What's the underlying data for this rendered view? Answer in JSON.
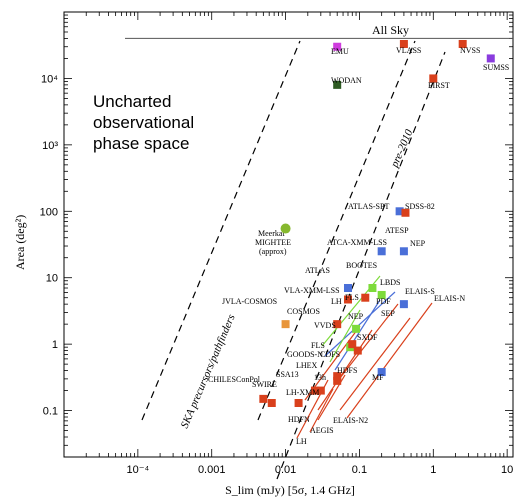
{
  "chart_data": {
    "type": "scatter",
    "title": "",
    "xlabel": "S_lim (mJy) [5σ, 1.4 GHz]",
    "ylabel": "Area (deg²)",
    "x_scale": "log",
    "y_scale": "log",
    "xlim": [
      1e-05,
      12
    ],
    "ylim": [
      0.02,
      100000
    ],
    "x_tick_labels": [
      "10⁻⁴",
      "0.001",
      "0.01",
      "0.1",
      "1",
      "10"
    ],
    "x_ticks": [
      0.0001,
      0.001,
      0.01,
      0.1,
      1,
      10
    ],
    "y_tick_labels": [
      "0.1",
      "1",
      "10",
      "100",
      "10³",
      "10⁴"
    ],
    "y_ticks": [
      0.1,
      1,
      10,
      100,
      1000,
      10000
    ],
    "annotations": {
      "uncharted": [
        "Uncharted",
        "observational",
        "phase space"
      ],
      "all_sky": "All Sky",
      "ska_band": "SKA precursors/pathfinders",
      "pre2010_band": "pre-2010",
      "meerkat": [
        "Meerkat",
        "MIGHTEE",
        "(approx)"
      ]
    },
    "all_sky_area": 40000,
    "colors": {
      "red": "#d9401c",
      "blue": "#4a6fd8",
      "green": "#7ddb3a",
      "orange": "#e8953a",
      "magenta": "#cf3cde",
      "purple": "#8a3cde",
      "darkgreen": "#2d5a22",
      "olive": "#86b82e"
    },
    "series": [
      {
        "label": "EMU",
        "x": 0.05,
        "y": 30000,
        "color": "magenta",
        "marker": "square"
      },
      {
        "label": "WODAN",
        "x": 0.05,
        "y": 8000,
        "color": "darkgreen",
        "marker": "square"
      },
      {
        "label": "VLASS",
        "x": 0.4,
        "y": 33000,
        "color": "red",
        "marker": "square"
      },
      {
        "label": "NVSS",
        "x": 2.5,
        "y": 33000,
        "color": "red",
        "marker": "square"
      },
      {
        "label": "SUMSS",
        "x": 6,
        "y": 20000,
        "color": "purple",
        "marker": "square"
      },
      {
        "label": "FIRST",
        "x": 1.0,
        "y": 10000,
        "color": "red",
        "marker": "square"
      },
      {
        "label": "ATLAS-SPT",
        "x": 0.35,
        "y": 100,
        "color": "blue",
        "marker": "square"
      },
      {
        "label": "SDSS-82",
        "x": 0.42,
        "y": 95,
        "color": "red",
        "marker": "square"
      },
      {
        "label": "",
        "x": 0.01,
        "y": 55,
        "color": "olive",
        "marker": "circle"
      },
      {
        "label": "ATCA-XMM-LSS",
        "x": 0.2,
        "y": 25,
        "color": "blue",
        "marker": "square"
      },
      {
        "label": "ATESP",
        "x": 0.4,
        "y": 25,
        "color": "blue",
        "marker": "square"
      },
      {
        "label": "ATLAS",
        "x": 0.07,
        "y": 7,
        "color": "blue",
        "marker": "square"
      },
      {
        "label": "BOOTES",
        "x": 0.15,
        "y": 7,
        "color": "green",
        "marker": "square"
      },
      {
        "label": "LBDS",
        "x": 0.2,
        "y": 5.5,
        "color": "green",
        "marker": "square"
      },
      {
        "label": "VLA-XMM-LSS",
        "x": 0.07,
        "y": 4.7,
        "color": "red",
        "marker": "square"
      },
      {
        "label": "FLS",
        "x": 0.12,
        "y": 5.0,
        "color": "red",
        "marker": "square"
      },
      {
        "label": "ELAIS-S",
        "x": 0.4,
        "y": 4.0,
        "color": "blue",
        "marker": "square"
      },
      {
        "label": "COSMOS",
        "x": 0.05,
        "y": 2.0,
        "color": "red",
        "marker": "square"
      },
      {
        "label": "NEP",
        "x": 0.09,
        "y": 1.7,
        "color": "green",
        "marker": "square"
      },
      {
        "label": "JVLA-COSMOS",
        "x": 0.01,
        "y": 2.0,
        "color": "orange",
        "marker": "square"
      },
      {
        "label": "VVDS",
        "x": 0.075,
        "y": 0.9,
        "color": "green",
        "marker": "square"
      },
      {
        "label": "SXDF",
        "x": 0.08,
        "y": 1.0,
        "color": "red",
        "marker": "square"
      },
      {
        "label": "",
        "x": 0.095,
        "y": 0.8,
        "color": "red",
        "marker": "square"
      },
      {
        "label": "CDFS",
        "x": 0.05,
        "y": 0.33,
        "color": "red",
        "marker": "square"
      },
      {
        "label": "",
        "x": 0.05,
        "y": 0.28,
        "color": "red",
        "marker": "square"
      },
      {
        "label": "SSA13",
        "x": 0.025,
        "y": 0.2,
        "color": "red",
        "marker": "square"
      },
      {
        "label": "",
        "x": 0.03,
        "y": 0.2,
        "color": "red",
        "marker": "square"
      },
      {
        "label": "MF",
        "x": 0.2,
        "y": 0.38,
        "color": "blue",
        "marker": "square"
      },
      {
        "label": "",
        "x": 0.005,
        "y": 0.15,
        "color": "red",
        "marker": "square"
      },
      {
        "label": "",
        "x": 0.0065,
        "y": 0.13,
        "color": "red",
        "marker": "square"
      },
      {
        "label": "",
        "x": 0.015,
        "y": 0.13,
        "color": "red",
        "marker": "square"
      }
    ],
    "text_labels": [
      "CHILESConPol",
      "SWIRE",
      "LH-XMM",
      "LHEX",
      "13h",
      "GOODS-N",
      "FLS",
      "LH",
      "PDF",
      "SEP",
      "ELAIS-N",
      "NEP",
      "HDFS",
      "HDFN",
      "ELAIS-N2",
      "AEGIS",
      "LH"
    ]
  }
}
